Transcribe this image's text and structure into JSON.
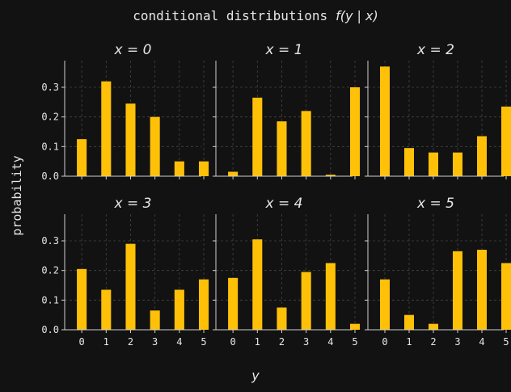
{
  "figure": {
    "title": "conditional distributions",
    "title_math": "f(y | x)",
    "ylabel": "probability",
    "xlabel": "y",
    "colors": {
      "background": "#121212",
      "bar": "#ffc107",
      "text": "#e6e6e6",
      "axis": "#d0d0d0",
      "grid": "#444444"
    }
  },
  "chart_data": [
    {
      "type": "bar",
      "title": "x = 0",
      "categories": [
        "0",
        "1",
        "2",
        "3",
        "4",
        "5"
      ],
      "values": [
        0.125,
        0.32,
        0.245,
        0.2,
        0.05,
        0.05
      ],
      "ylim": [
        0,
        0.39
      ],
      "yticks": [
        "0.0",
        "0.1",
        "0.2",
        "0.3"
      ],
      "grid": true
    },
    {
      "type": "bar",
      "title": "x = 1",
      "categories": [
        "0",
        "1",
        "2",
        "3",
        "4",
        "5"
      ],
      "values": [
        0.015,
        0.265,
        0.185,
        0.22,
        0.005,
        0.3
      ],
      "ylim": [
        0,
        0.39
      ],
      "yticks": [
        "0.0",
        "0.1",
        "0.2",
        "0.3"
      ],
      "grid": true
    },
    {
      "type": "bar",
      "title": "x = 2",
      "categories": [
        "0",
        "1",
        "2",
        "3",
        "4",
        "5"
      ],
      "values": [
        0.37,
        0.095,
        0.08,
        0.08,
        0.135,
        0.235
      ],
      "ylim": [
        0,
        0.39
      ],
      "yticks": [
        "0.0",
        "0.1",
        "0.2",
        "0.3"
      ],
      "grid": true
    },
    {
      "type": "bar",
      "title": "x = 3",
      "categories": [
        "0",
        "1",
        "2",
        "3",
        "4",
        "5"
      ],
      "values": [
        0.205,
        0.135,
        0.29,
        0.065,
        0.135,
        0.17
      ],
      "ylim": [
        0,
        0.39
      ],
      "yticks": [
        "0.0",
        "0.1",
        "0.2",
        "0.3"
      ],
      "grid": true
    },
    {
      "type": "bar",
      "title": "x = 4",
      "categories": [
        "0",
        "1",
        "2",
        "3",
        "4",
        "5"
      ],
      "values": [
        0.175,
        0.305,
        0.075,
        0.195,
        0.225,
        0.02
      ],
      "ylim": [
        0,
        0.39
      ],
      "yticks": [
        "0.0",
        "0.1",
        "0.2",
        "0.3"
      ],
      "grid": true
    },
    {
      "type": "bar",
      "title": "x = 5",
      "categories": [
        "0",
        "1",
        "2",
        "3",
        "4",
        "5"
      ],
      "values": [
        0.17,
        0.05,
        0.02,
        0.265,
        0.27,
        0.225
      ],
      "ylim": [
        0,
        0.39
      ],
      "yticks": [
        "0.0",
        "0.1",
        "0.2",
        "0.3"
      ],
      "grid": true
    }
  ]
}
